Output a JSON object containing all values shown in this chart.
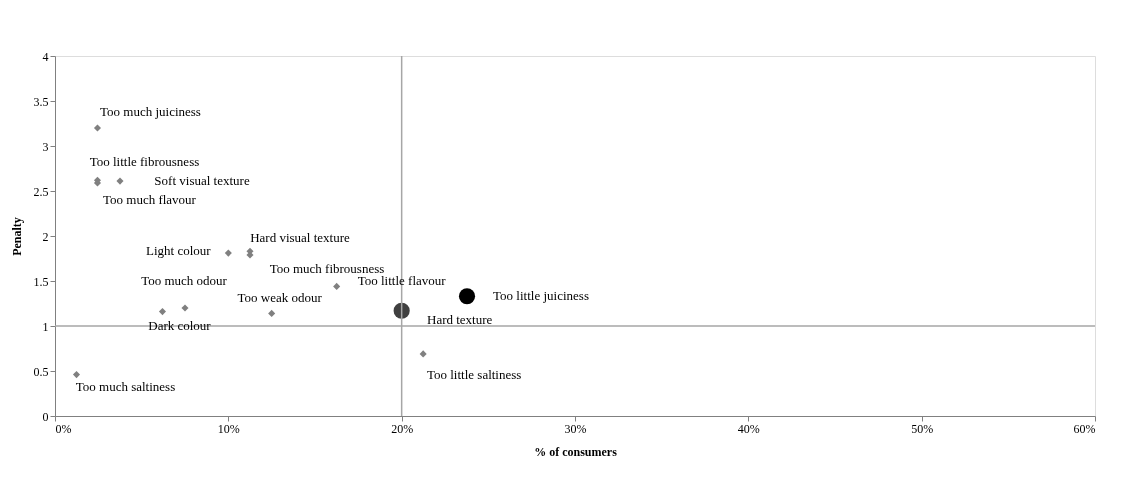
{
  "chart_data": {
    "type": "scatter",
    "xlabel": "% of consumers",
    "ylabel": "Penalty",
    "xlim": [
      0,
      60
    ],
    "ylim": [
      0,
      4
    ],
    "xticks": [
      {
        "value": 0,
        "label": "0%"
      },
      {
        "value": 10,
        "label": "10%"
      },
      {
        "value": 20,
        "label": "20%"
      },
      {
        "value": 30,
        "label": "30%"
      },
      {
        "value": 40,
        "label": "40%"
      },
      {
        "value": 50,
        "label": "50%"
      },
      {
        "value": 60,
        "label": "60%"
      }
    ],
    "yticks": [
      0,
      0.5,
      1,
      1.5,
      2,
      2.5,
      3,
      3.5,
      4
    ],
    "grid": false,
    "series": [
      {
        "color": "#808080",
        "marker": "diamond",
        "x": [
          2.45,
          2.45,
          2.45,
          3.75,
          10.0,
          11.25,
          11.25,
          7.5,
          6.2,
          12.5,
          16.25,
          1.24,
          21.24
        ],
        "values": [
          3.2,
          2.62,
          2.59,
          2.61,
          1.81,
          1.83,
          1.79,
          1.2,
          1.16,
          1.14,
          1.44,
          0.46,
          0.69
        ]
      },
      {
        "color": "#404040",
        "marker": "circle",
        "x": [
          20.0
        ],
        "values": [
          1.17
        ]
      },
      {
        "color": "#000000",
        "marker": "circle",
        "x": [
          23.77
        ],
        "values": [
          1.33
        ]
      }
    ],
    "ref_lines": [
      {
        "axis": "x",
        "value": 20,
        "color": "#a6a6a6"
      },
      {
        "axis": "y",
        "value": 1,
        "color": "#a6a6a6"
      }
    ],
    "annotations": [
      {
        "text": "Too much juiciness",
        "x": 2.45,
        "y": 3.2
      },
      {
        "text": "Too little fibrousness",
        "x": 2.45,
        "y": 2.62
      },
      {
        "text": "Soft visual texture",
        "x": 3.75,
        "y": 2.61
      },
      {
        "text": "Too much flavour",
        "x": 2.45,
        "y": 2.59
      },
      {
        "text": "Hard visual texture",
        "x": 11.25,
        "y": 1.83
      },
      {
        "text": "Light colour",
        "x": 10.0,
        "y": 1.81
      },
      {
        "text": "Too much fibrousness",
        "x": 11.25,
        "y": 1.79
      },
      {
        "text": "Too much odour",
        "x": 7.5,
        "y": 1.2
      },
      {
        "text": "Too little flavour",
        "x": 16.25,
        "y": 1.44
      },
      {
        "text": "Too weak odour",
        "x": 12.5,
        "y": 1.14
      },
      {
        "text": "Dark colour",
        "x": 6.2,
        "y": 1.16
      },
      {
        "text": "Too much saltiness",
        "x": 1.24,
        "y": 0.46
      },
      {
        "text": "Hard texture",
        "x": 20.0,
        "y": 1.17
      },
      {
        "text": "Too little saltiness",
        "x": 21.24,
        "y": 0.69
      },
      {
        "text": "Too little juiciness",
        "x": 23.77,
        "y": 1.33
      }
    ]
  }
}
